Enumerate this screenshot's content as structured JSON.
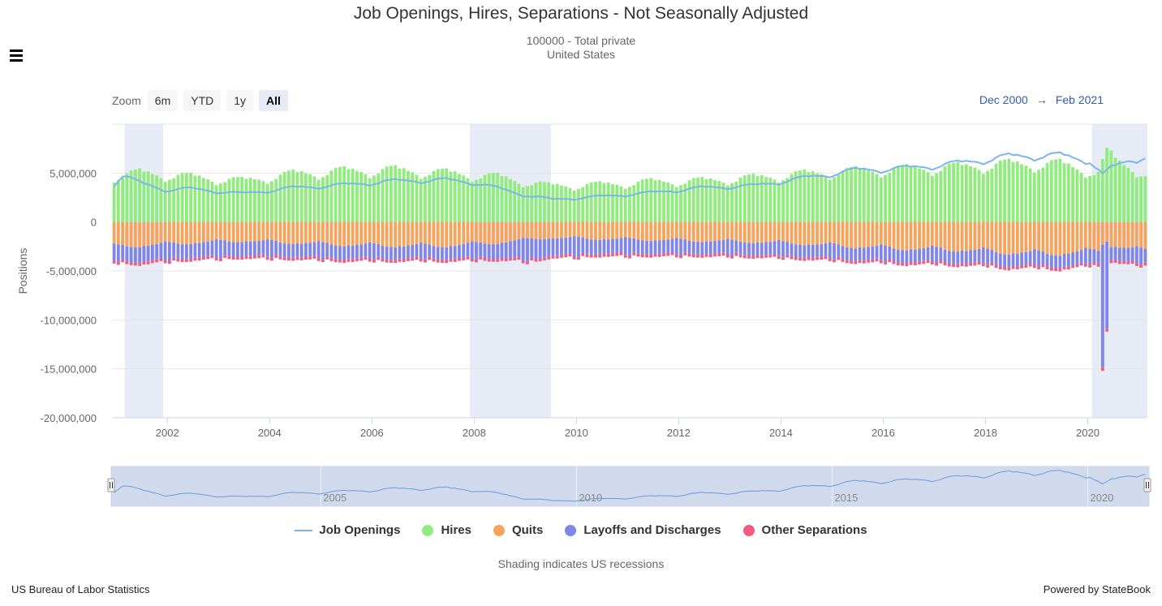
{
  "header": {
    "title": "Job Openings, Hires, Separations - Not Seasonally Adjusted",
    "subtitle_line1": "100000 - Total private",
    "subtitle_line2": "United States"
  },
  "zoom": {
    "label": "Zoom",
    "buttons": [
      "6m",
      "YTD",
      "1y",
      "All"
    ],
    "active": "All"
  },
  "range": {
    "from": "Dec 2000",
    "arrow": "→",
    "to": "Feb 2021"
  },
  "note": "Shading indicates US recessions",
  "credits": {
    "left": "US Bureau of Labor Statistics",
    "right": "Powered by StateBook"
  },
  "colors": {
    "job_openings": "#7cb5ec",
    "hires": "#90ed7d",
    "quits": "#f7a35c",
    "layoffs": "#8085e9",
    "other": "#f15c80",
    "recession": "#e6ebf5",
    "navigator": "#ccd6eb"
  },
  "chart_data": {
    "type": "bar",
    "stacked": true,
    "ylabel": "Positions",
    "ylim": [
      -20000000,
      10000000
    ],
    "y_ticks": [
      {
        "value": 5000000,
        "label": "5,000,000"
      },
      {
        "value": 0,
        "label": "0"
      },
      {
        "value": -5000000,
        "label": "-5,000,000"
      },
      {
        "value": -10000000,
        "label": "-10,000,000"
      },
      {
        "value": -15000000,
        "label": "-15,000,000"
      },
      {
        "value": -20000000,
        "label": "-20,000,000"
      }
    ],
    "x_range": [
      "2000-12",
      "2021-02"
    ],
    "x_ticks": [
      "2002",
      "2004",
      "2006",
      "2008",
      "2010",
      "2012",
      "2014",
      "2016",
      "2018",
      "2020"
    ],
    "recessions": [
      [
        "2001-03",
        "2001-11"
      ],
      [
        "2007-12",
        "2009-06"
      ],
      [
        "2020-02",
        "2021-02"
      ]
    ],
    "navigator_ticks": [
      "2005",
      "2010",
      "2015",
      "2020"
    ],
    "legend": [
      "Job Openings",
      "Hires",
      "Quits",
      "Layoffs and Discharges",
      "Other Separations"
    ],
    "legend_position": "bottom",
    "series_keyframes": {
      "job_openings": [
        [
          "2000-12",
          3900000
        ],
        [
          "2001-02",
          4800000
        ],
        [
          "2001-06",
          4000000
        ],
        [
          "2001-12",
          3300000
        ],
        [
          "2002-06",
          3400000
        ],
        [
          "2003-06",
          2900000
        ],
        [
          "2004-06",
          3500000
        ],
        [
          "2005-06",
          3800000
        ],
        [
          "2006-06",
          4200000
        ],
        [
          "2007-06",
          4300000
        ],
        [
          "2008-01",
          4000000
        ],
        [
          "2008-12",
          2800000
        ],
        [
          "2009-07",
          2300000
        ],
        [
          "2010-06",
          2600000
        ],
        [
          "2011-06",
          3000000
        ],
        [
          "2012-06",
          3500000
        ],
        [
          "2013-06",
          3700000
        ],
        [
          "2014-06",
          4500000
        ],
        [
          "2015-06",
          5300000
        ],
        [
          "2016-06",
          5500000
        ],
        [
          "2017-06",
          6000000
        ],
        [
          "2018-06",
          6700000
        ],
        [
          "2019-06",
          6800000
        ],
        [
          "2020-01",
          6300000
        ],
        [
          "2020-04",
          4800000
        ],
        [
          "2020-06",
          5500000
        ],
        [
          "2020-10",
          6300000
        ],
        [
          "2021-02",
          6700000
        ]
      ],
      "hires": [
        [
          "2000-12",
          4700000
        ],
        [
          "2001-06",
          5000000
        ],
        [
          "2002-06",
          4600000
        ],
        [
          "2003-06",
          4200000
        ],
        [
          "2004-06",
          4900000
        ],
        [
          "2005-06",
          5200000
        ],
        [
          "2006-06",
          5300000
        ],
        [
          "2007-06",
          5000000
        ],
        [
          "2008-06",
          4600000
        ],
        [
          "2009-06",
          3700000
        ],
        [
          "2010-06",
          3800000
        ],
        [
          "2011-06",
          4100000
        ],
        [
          "2012-06",
          4200000
        ],
        [
          "2013-06",
          4500000
        ],
        [
          "2014-06",
          4900000
        ],
        [
          "2015-06",
          5200000
        ],
        [
          "2016-06",
          5400000
        ],
        [
          "2017-06",
          5600000
        ],
        [
          "2018-06",
          5900000
        ],
        [
          "2019-06",
          5900000
        ],
        [
          "2020-03",
          5000000
        ],
        [
          "2020-05",
          7000000
        ],
        [
          "2020-08",
          6000000
        ],
        [
          "2021-02",
          5000000
        ]
      ],
      "quits": [
        [
          "2000-12",
          2500000
        ],
        [
          "2001-06",
          2400000
        ],
        [
          "2002-06",
          2100000
        ],
        [
          "2003-06",
          1900000
        ],
        [
          "2004-06",
          2100000
        ],
        [
          "2005-06",
          2300000
        ],
        [
          "2006-06",
          2400000
        ],
        [
          "2007-06",
          2400000
        ],
        [
          "2008-06",
          2100000
        ],
        [
          "2009-06",
          1600000
        ],
        [
          "2010-06",
          1700000
        ],
        [
          "2011-06",
          1800000
        ],
        [
          "2012-06",
          1900000
        ],
        [
          "2013-06",
          2000000
        ],
        [
          "2014-06",
          2200000
        ],
        [
          "2015-06",
          2500000
        ],
        [
          "2016-06",
          2700000
        ],
        [
          "2017-06",
          2800000
        ],
        [
          "2018-06",
          3100000
        ],
        [
          "2019-06",
          3200000
        ],
        [
          "2020-03",
          2900000
        ],
        [
          "2020-05",
          2300000
        ],
        [
          "2020-10",
          2700000
        ],
        [
          "2021-02",
          2900000
        ]
      ],
      "layoffs": [
        [
          "2000-12",
          1400000
        ],
        [
          "2001-06",
          1600000
        ],
        [
          "2002-06",
          1500000
        ],
        [
          "2003-06",
          1500000
        ],
        [
          "2004-06",
          1400000
        ],
        [
          "2005-06",
          1400000
        ],
        [
          "2006-06",
          1300000
        ],
        [
          "2007-06",
          1300000
        ],
        [
          "2008-06",
          1500000
        ],
        [
          "2009-03",
          2000000
        ],
        [
          "2009-06",
          1800000
        ],
        [
          "2010-06",
          1500000
        ],
        [
          "2011-06",
          1400000
        ],
        [
          "2012-06",
          1300000
        ],
        [
          "2013-06",
          1300000
        ],
        [
          "2014-06",
          1300000
        ],
        [
          "2015-06",
          1300000
        ],
        [
          "2016-06",
          1300000
        ],
        [
          "2017-06",
          1300000
        ],
        [
          "2018-06",
          1300000
        ],
        [
          "2019-06",
          1300000
        ],
        [
          "2020-02",
          1300000
        ],
        [
          "2021-02",
          1400000
        ]
      ],
      "other": [
        [
          "2000-12",
          300000
        ],
        [
          "2021-02",
          300000
        ]
      ]
    },
    "special_points": {
      "2020-04": {
        "quits": 2300000,
        "layoffs": 12500000,
        "other": 400000
      },
      "2020-05": {
        "quits": 2000000,
        "layoffs": 8900000,
        "other": 300000
      }
    },
    "navigator_series": "job_openings"
  }
}
